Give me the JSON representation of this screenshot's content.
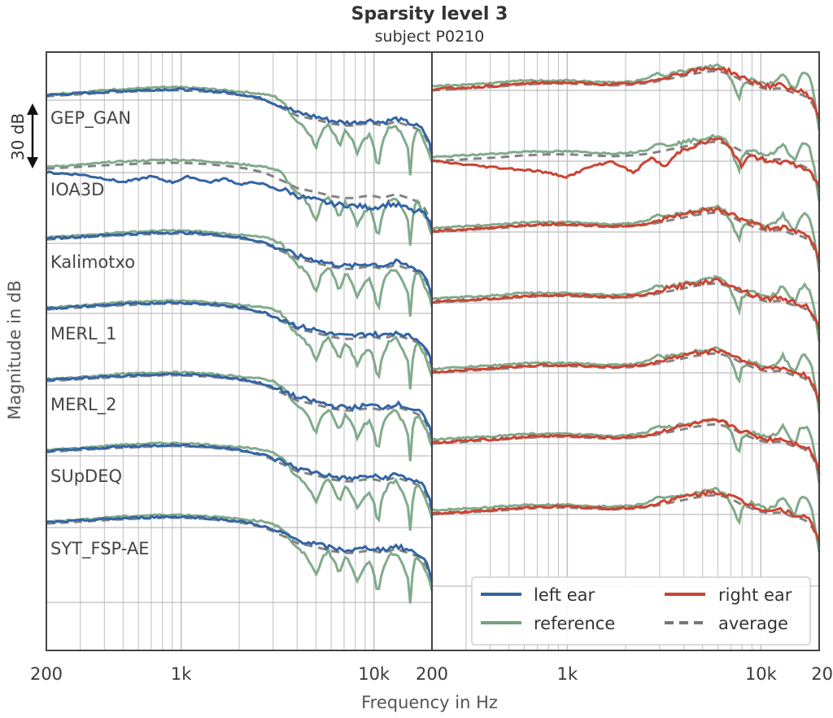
{
  "chart_data": {
    "type": "line",
    "title": "Sparsity level 3",
    "subtitle": "subject P0210",
    "xlabel": "Frequency in Hz",
    "ylabel": "Magnitude in dB",
    "x_scale": "log",
    "xlim": [
      200,
      20000
    ],
    "x_tick_labels_left": [
      "200",
      "1k",
      "10k"
    ],
    "x_tick_labels_right": [
      "200",
      "1k",
      "10k",
      "20"
    ],
    "scale_annotation": "30 dB",
    "grid": true,
    "legend_position": "lower-right",
    "methods": [
      "GEP_GAN",
      "IOA3D",
      "Kalimotxo",
      "MERL_1",
      "MERL_2",
      "SUpDEQ",
      "SYT_FSP-AE"
    ],
    "panels": [
      "left ear",
      "right ear"
    ],
    "series": [
      {
        "name": "left ear",
        "color": "#3465a4"
      },
      {
        "name": "right ear",
        "color": "#cc4433"
      },
      {
        "name": "reference",
        "color": "#74a27f"
      },
      {
        "name": "average",
        "color": "#777777",
        "dash": true
      }
    ],
    "curves": {
      "left_reference": [
        [
          200,
          3
        ],
        [
          300,
          4
        ],
        [
          450,
          5.5
        ],
        [
          600,
          6
        ],
        [
          800,
          6.5
        ],
        [
          1000,
          6.5
        ],
        [
          1300,
          6
        ],
        [
          1700,
          5
        ],
        [
          2200,
          4
        ],
        [
          2700,
          3
        ],
        [
          3000,
          2
        ],
        [
          3300,
          0
        ],
        [
          3600,
          -5
        ],
        [
          3900,
          -10
        ],
        [
          4300,
          -13
        ],
        [
          4700,
          -18
        ],
        [
          5000,
          -25
        ],
        [
          5400,
          -15
        ],
        [
          5800,
          -12
        ],
        [
          6300,
          -18
        ],
        [
          6600,
          -24
        ],
        [
          7100,
          -15
        ],
        [
          7700,
          -20
        ],
        [
          8200,
          -27
        ],
        [
          8800,
          -21
        ],
        [
          9500,
          -18
        ],
        [
          10000,
          -24
        ],
        [
          10500,
          -35
        ],
        [
          11000,
          -22
        ],
        [
          12000,
          -14
        ],
        [
          13000,
          -13
        ],
        [
          14000,
          -18
        ],
        [
          15000,
          -25
        ],
        [
          15500,
          -40
        ],
        [
          16000,
          -18
        ],
        [
          17000,
          -15
        ],
        [
          18000,
          -20
        ],
        [
          19000,
          -25
        ],
        [
          20000,
          -32
        ]
      ],
      "left_average": [
        [
          200,
          2
        ],
        [
          300,
          3
        ],
        [
          450,
          4
        ],
        [
          600,
          4.5
        ],
        [
          800,
          5
        ],
        [
          1000,
          5
        ],
        [
          1300,
          4.5
        ],
        [
          1700,
          3.5
        ],
        [
          2200,
          2
        ],
        [
          2700,
          0
        ],
        [
          3000,
          -2
        ],
        [
          3500,
          -5
        ],
        [
          4000,
          -8
        ],
        [
          4500,
          -9
        ],
        [
          5000,
          -10
        ],
        [
          5500,
          -11
        ],
        [
          6000,
          -12
        ],
        [
          7000,
          -13
        ],
        [
          8000,
          -13
        ],
        [
          9000,
          -12
        ],
        [
          10000,
          -12
        ],
        [
          11000,
          -13
        ],
        [
          12000,
          -12
        ],
        [
          13000,
          -11
        ],
        [
          14000,
          -12
        ],
        [
          15000,
          -13
        ],
        [
          16000,
          -14
        ],
        [
          17000,
          -15
        ],
        [
          18000,
          -17
        ],
        [
          19000,
          -21
        ],
        [
          20000,
          -28
        ]
      ],
      "right_reference": [
        [
          200,
          2
        ],
        [
          300,
          3
        ],
        [
          450,
          4
        ],
        [
          600,
          5
        ],
        [
          800,
          5
        ],
        [
          1000,
          5
        ],
        [
          1300,
          4.5
        ],
        [
          1700,
          4
        ],
        [
          2200,
          4.5
        ],
        [
          2600,
          6
        ],
        [
          2900,
          9
        ],
        [
          3200,
          8
        ],
        [
          3600,
          9
        ],
        [
          4100,
          10
        ],
        [
          4700,
          11
        ],
        [
          5300,
          12
        ],
        [
          5900,
          13
        ],
        [
          6500,
          11
        ],
        [
          7000,
          6
        ],
        [
          7400,
          0
        ],
        [
          7700,
          -5
        ],
        [
          8000,
          3
        ],
        [
          8500,
          5
        ],
        [
          9000,
          6
        ],
        [
          9500,
          5
        ],
        [
          10000,
          4
        ],
        [
          11000,
          3
        ],
        [
          12000,
          5
        ],
        [
          13000,
          9
        ],
        [
          14000,
          4
        ],
        [
          15000,
          0
        ],
        [
          16000,
          8
        ],
        [
          17000,
          9
        ],
        [
          18000,
          6
        ],
        [
          19000,
          -5
        ],
        [
          20000,
          -20
        ]
      ],
      "right_average": [
        [
          200,
          0
        ],
        [
          300,
          1
        ],
        [
          450,
          2
        ],
        [
          600,
          3
        ],
        [
          800,
          3.5
        ],
        [
          1000,
          3.5
        ],
        [
          1300,
          3
        ],
        [
          1700,
          2.5
        ],
        [
          2200,
          3
        ],
        [
          2700,
          4
        ],
        [
          3200,
          5.5
        ],
        [
          3800,
          7
        ],
        [
          4500,
          8.5
        ],
        [
          5200,
          9.5
        ],
        [
          6000,
          10
        ],
        [
          7000,
          8
        ],
        [
          8000,
          5
        ],
        [
          9000,
          3
        ],
        [
          10000,
          1.5
        ],
        [
          11000,
          0.5
        ],
        [
          12000,
          1
        ],
        [
          13000,
          1
        ],
        [
          14000,
          -0.5
        ],
        [
          15000,
          -1.5
        ],
        [
          16000,
          -2
        ],
        [
          17000,
          -3
        ],
        [
          18000,
          -5
        ],
        [
          19000,
          -9
        ],
        [
          20000,
          -16
        ]
      ]
    }
  },
  "legend": {
    "left_ear": "left ear",
    "right_ear": "right ear",
    "reference": "reference",
    "average": "average"
  }
}
